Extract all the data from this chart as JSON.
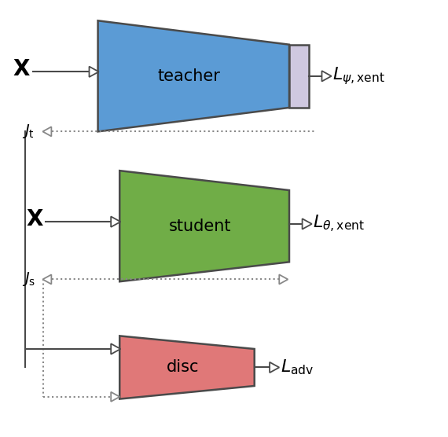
{
  "fig_width": 5.7,
  "fig_height": 5.56,
  "dpi": 100,
  "bg_color": "#ffffff",
  "teacher_trap_color": "#5b9bd5",
  "teacher_trap_edge": "#4a4a4a",
  "teacher_small_rect_color": "#cfc8e0",
  "student_trap_color": "#70ad47",
  "student_trap_edge": "#4a4a4a",
  "disc_trap_color": "#e07878",
  "disc_trap_edge": "#4a4a4a",
  "arrow_color": "#4a4a4a",
  "dotted_color": "#888888",
  "teacher_label": "teacher",
  "student_label": "student",
  "disc_label": "disc"
}
